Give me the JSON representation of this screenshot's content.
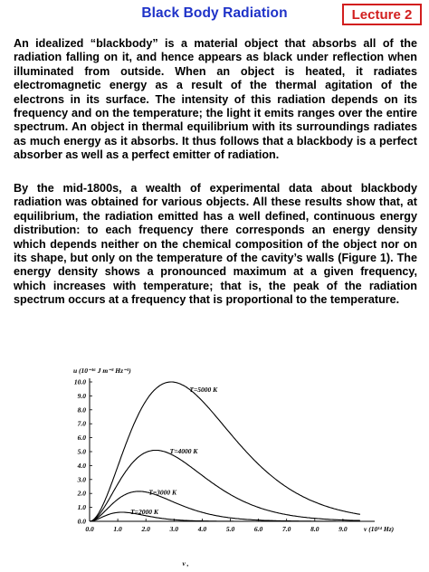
{
  "header": {
    "title": "Black Body Radiation",
    "lecture_label": "Lecture 2",
    "accent_title": "#1e32c8",
    "accent_lecture": "#d21e1e"
  },
  "paragraphs": [
    "An idealized “blackbody” is a material object that absorbs all of the radiation falling on it, and hence appears as black under reflection when illuminated from outside. When an object is heated, it radiates electromagnetic energy as a result of the thermal agitation of the electrons in its surface. The intensity of this radiation depends on its frequency and on the temperature; the light it emits ranges over the entire spectrum. An object in thermal equilibrium with its surroundings radiates as much energy as it absorbs. It thus follows that a blackbody is a perfect absorber as well as a perfect emitter of radiation.",
    "By the mid-1800s, a wealth of experimental data about blackbody radiation was obtained for various objects. All these results show that, at equilibrium, the radiation emitted has a well defined, continuous energy distribution: to each frequency there corresponds an energy density which depends neither on the chemical composition of the object nor on its shape, but only on the temperature of the cavity’s walls (Figure 1). The energy density shows a pronounced maximum at a given frequency, which increases with temperature; that is, the peak of the radiation spectrum occurs at a frequency that is proportional to the temperature."
  ],
  "chart_data": {
    "type": "line",
    "ylabel": "u (10⁻¹⁶ J m⁻³ Hz⁻¹)",
    "xlabel": "ν (10¹⁴ Hz)",
    "below_axis_label": "ν ,",
    "xlim": [
      0,
      10
    ],
    "ylim": [
      0,
      10
    ],
    "x_ticks": [
      "0.0",
      "1.0",
      "2.0",
      "3.0",
      "4.0",
      "5.0",
      "6.0",
      "7.0",
      "8.0",
      "9.0"
    ],
    "y_ticks": [
      "0.0",
      "1.0",
      "2.0",
      "3.0",
      "4.0",
      "5.0",
      "6.0",
      "7.0",
      "8.0",
      "9.0",
      "10.0"
    ],
    "grid": false,
    "series": [
      {
        "name": "T=5000 K",
        "peak_x": 2.9,
        "peak_y": 10.0
      },
      {
        "name": "T=4000 K",
        "peak_x": 2.35,
        "peak_y": 5.1
      },
      {
        "name": "T=3000 K",
        "peak_x": 1.75,
        "peak_y": 2.15
      },
      {
        "name": "T=2000 K",
        "peak_x": 1.15,
        "peak_y": 0.65
      }
    ]
  }
}
